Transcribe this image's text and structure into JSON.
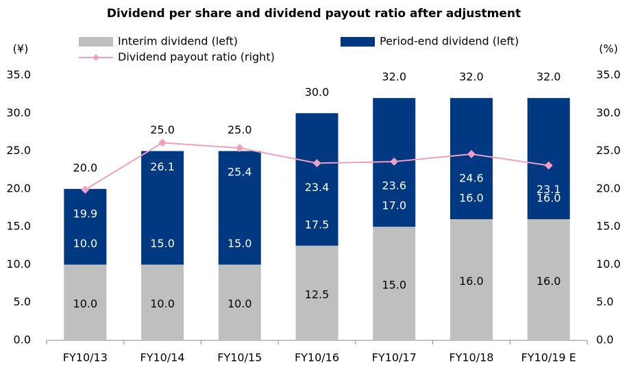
{
  "chart_data": {
    "type": "bar",
    "title": "Dividend per share and dividend payout ratio after adjustment",
    "y_unit": "(¥)",
    "y2_unit": "(%)",
    "categories": [
      "FY10/13",
      "FY10/14",
      "FY10/15",
      "FY10/16",
      "FY10/17",
      "FY10/18",
      "FY10/19 E"
    ],
    "series": [
      {
        "name": "Interim dividend (left)",
        "type": "bar",
        "color": "#bfbfbf",
        "values": [
          10,
          10,
          10,
          12.5,
          15,
          16,
          16
        ],
        "value_labels": [
          "10.0",
          "10.0",
          "10.0",
          "12.5",
          "15.0",
          "16.0",
          "16.0"
        ]
      },
      {
        "name": "Period-end dividend (left)",
        "type": "bar",
        "color": "#003882",
        "values": [
          10,
          15,
          15,
          17.5,
          17,
          16,
          16
        ],
        "value_labels": [
          "10.0",
          "15.0",
          "15.0",
          "17.5",
          "17.0",
          "16.0",
          "16.0"
        ]
      },
      {
        "name": "Dividend payout ratio (right)",
        "type": "line",
        "axis": "y2",
        "color": "#f19ec2",
        "values": [
          19.9,
          26.1,
          25.4,
          23.4,
          23.6,
          24.6,
          23.1
        ],
        "value_labels": [
          "19.9",
          "26.1",
          "25.4",
          "23.4",
          "23.6",
          "24.6",
          "23.1"
        ]
      }
    ],
    "totals": [
      20,
      25,
      25,
      30,
      32,
      32,
      32
    ],
    "total_labels": [
      "20.0",
      "25.0",
      "25.0",
      "30.0",
      "32.0",
      "32.0",
      "32.0"
    ],
    "ylim": [
      0,
      35
    ],
    "yticks": [
      {
        "value": 0,
        "label": "0.0"
      },
      {
        "value": 5,
        "label": "5.0"
      },
      {
        "value": 10,
        "label": "10.0"
      },
      {
        "value": 15,
        "label": "15.0"
      },
      {
        "value": 20,
        "label": "20.0"
      },
      {
        "value": 25,
        "label": "25.0"
      },
      {
        "value": 30,
        "label": "30.0"
      },
      {
        "value": 35,
        "label": "35.0"
      }
    ],
    "y2lim": [
      0,
      35
    ],
    "y2ticks": [
      {
        "value": 0,
        "label": "0.0"
      },
      {
        "value": 5,
        "label": "5.0"
      },
      {
        "value": 10,
        "label": "10.0"
      },
      {
        "value": 15,
        "label": "15.0"
      },
      {
        "value": 20,
        "label": "20.0"
      },
      {
        "value": 25,
        "label": "25.0"
      },
      {
        "value": 30,
        "label": "30.0"
      },
      {
        "value": 35,
        "label": "35.0"
      }
    ],
    "grid": false,
    "legend": "top"
  }
}
